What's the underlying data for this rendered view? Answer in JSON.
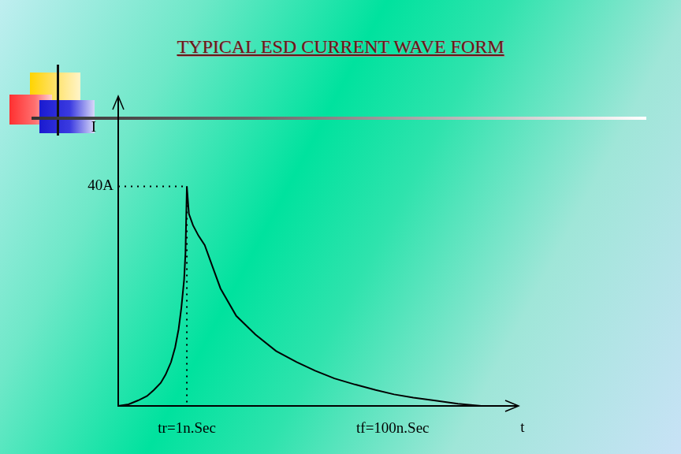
{
  "chart_data": {
    "type": "line",
    "title": "TYPICAL ESD CURRENT WAVE FORM",
    "x_label": "t",
    "y_label": "I",
    "x": [
      0,
      0.15,
      0.29,
      0.42,
      0.52,
      0.62,
      0.69,
      0.77,
      0.83,
      0.88,
      0.92,
      0.96,
      0.98,
      1.0,
      1.03,
      1.09,
      1.17,
      1.26,
      1.37,
      1.49,
      1.72,
      2.0,
      2.3,
      2.6,
      2.87,
      3.15,
      3.45,
      3.75,
      4.02,
      4.3,
      4.6,
      4.95,
      5.29
    ],
    "values": [
      0,
      0.3,
      1,
      1.8,
      2.9,
      4.2,
      5.7,
      8,
      10.7,
      14,
      17.9,
      23,
      27.9,
      40,
      35,
      32.9,
      31,
      29.3,
      25.5,
      21.4,
      16.4,
      13,
      10,
      8,
      6.4,
      5,
      3.9,
      2.9,
      2.1,
      1.5,
      1,
      0.4,
      0
    ],
    "color": "#000000",
    "xlim": [
      0,
      5.8
    ],
    "ylim": [
      0,
      56
    ],
    "xticks": [
      {
        "value": 1,
        "label": "tr=1n.Sec"
      },
      {
        "value": 4,
        "label": "tf=100n.Sec"
      }
    ],
    "yticks": [
      {
        "value": 40,
        "label": "40A"
      }
    ],
    "grid": false,
    "marker": "none",
    "line_style": "solid"
  }
}
